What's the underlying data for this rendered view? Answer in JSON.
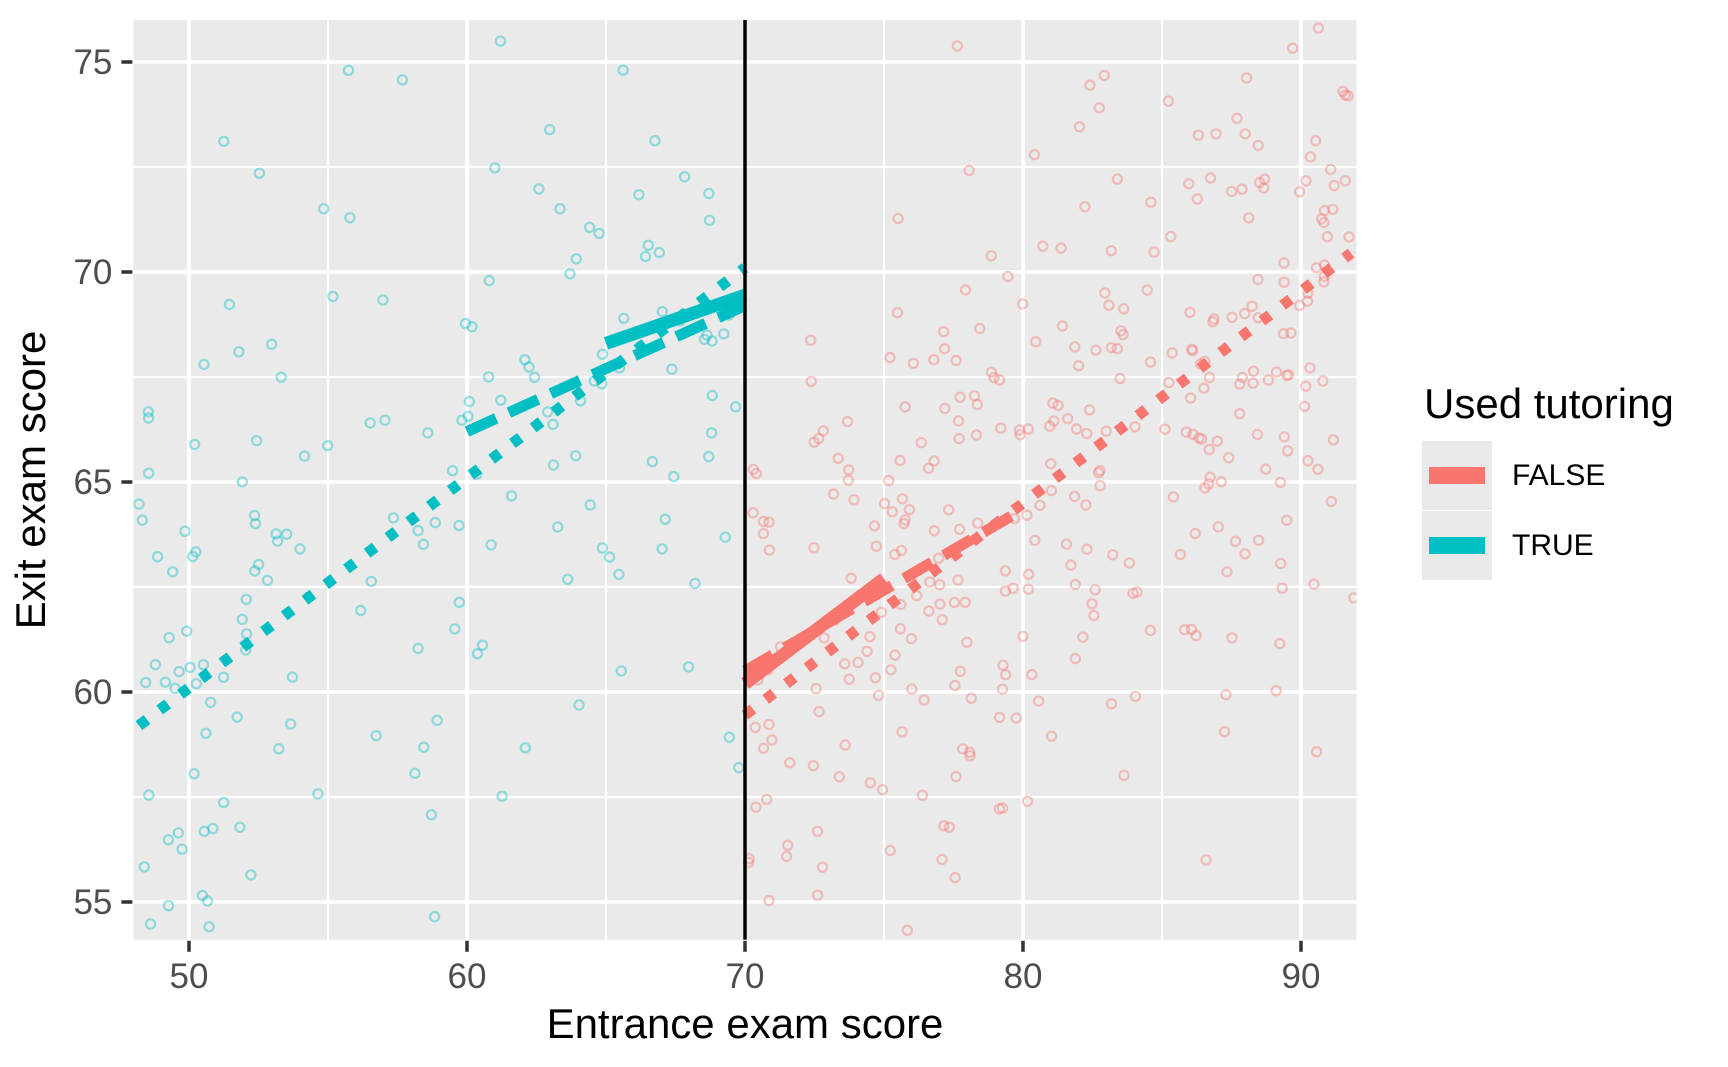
{
  "chart_data": {
    "type": "scatter",
    "title": "",
    "xlabel": "Entrance exam score",
    "ylabel": "Exit exam score",
    "xlim": [
      48,
      92
    ],
    "ylim": [
      54.1,
      76
    ],
    "x_ticks": [
      50,
      60,
      70,
      80,
      90
    ],
    "y_ticks": [
      55,
      60,
      65,
      70,
      75
    ],
    "grid": true,
    "panel_bg": "#EAEAEA",
    "grid_color": "#FFFFFF",
    "tick_label_color": "#4D4D4D",
    "cutoff_x": 70,
    "cutoff_color": "#000000",
    "legend": {
      "title": "Used tutoring",
      "position": "right",
      "entries": [
        {
          "label": "FALSE",
          "color": "#F8766D"
        },
        {
          "label": "TRUE",
          "color": "#00BFC4"
        }
      ]
    },
    "series": [
      {
        "name": "FALSE",
        "color": "#F8766D",
        "side": "right-of-cutoff",
        "x_range": [
          70.1,
          91.9
        ],
        "trend_lines": [
          {
            "style": "dotted",
            "x1": 70,
            "y1": 59.45,
            "x2": 91.8,
            "y2": 70.45
          },
          {
            "style": "dashed",
            "x1": 70,
            "y1": 60.5,
            "x2": 80,
            "y2": 64.35
          },
          {
            "style": "solid",
            "x1": 70,
            "y1": 60.2,
            "x2": 75,
            "y2": 62.7
          }
        ],
        "scatter_cloud": {
          "n": 340,
          "trend_intercept": 24.45,
          "trend_slope": 0.5,
          "noise_sd": 4.6,
          "seed": 13
        }
      },
      {
        "name": "TRUE",
        "color": "#00BFC4",
        "side": "left-of-cutoff",
        "x_range": [
          48.1,
          69.9
        ],
        "trend_lines": [
          {
            "style": "dotted",
            "x1": 48.2,
            "y1": 59.2,
            "x2": 70,
            "y2": 70.1
          },
          {
            "style": "dashed",
            "x1": 60,
            "y1": 66.2,
            "x2": 70,
            "y2": 69.2
          },
          {
            "style": "solid",
            "x1": 65,
            "y1": 68.3,
            "x2": 70,
            "y2": 69.45
          }
        ],
        "scatter_cloud": {
          "n": 170,
          "trend_intercept": 35.1,
          "trend_slope": 0.5,
          "noise_sd": 4.6,
          "seed": 7
        }
      }
    ],
    "point_style": {
      "shape": "open-circle",
      "radius_px": 4.6,
      "stroke_px": 2.2,
      "opacity": 0.4
    }
  }
}
